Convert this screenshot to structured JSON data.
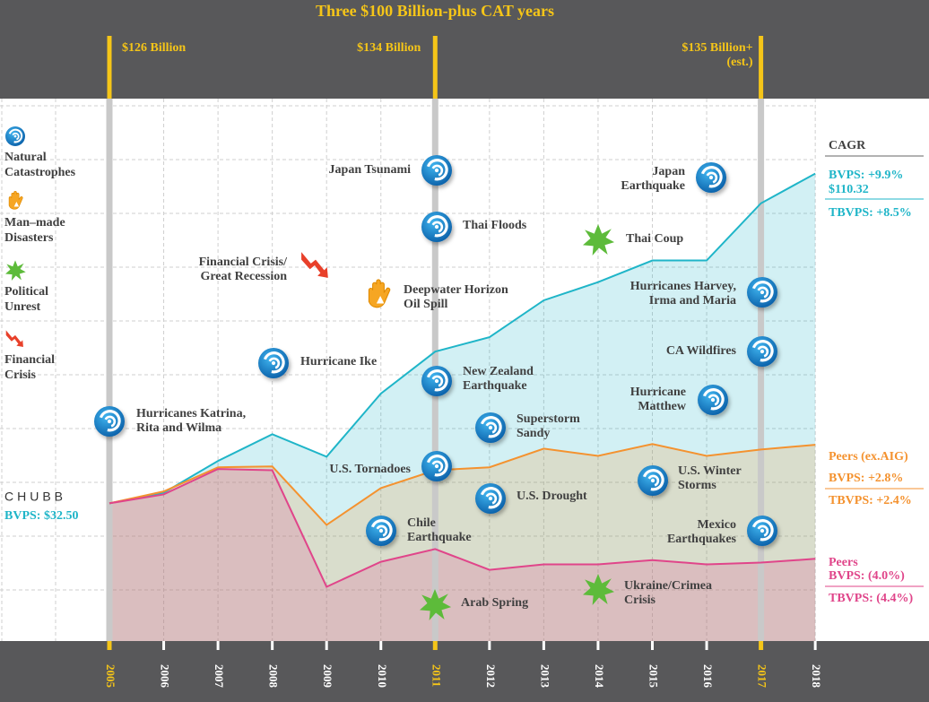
{
  "chart_data": {
    "type": "line",
    "title": "Three $100 Billion-plus CAT years",
    "categories": [
      "2005",
      "2006",
      "2007",
      "2008",
      "2009",
      "2010",
      "2011",
      "2012",
      "2013",
      "2014",
      "2015",
      "2016",
      "2017",
      "2018"
    ],
    "ylim": [
      0,
      128
    ],
    "grid": true,
    "series": [
      {
        "name": "CHUBB",
        "color": "#1fb5c8",
        "values": [
          32.5,
          35.0,
          42.5,
          48.8,
          43.5,
          58.4,
          68.3,
          71.7,
          80.4,
          84.7,
          89.8,
          89.8,
          103.3,
          110.32
        ],
        "value_labels": [
          "BVPS: $32.50",
          null,
          null,
          null,
          null,
          null,
          null,
          null,
          null,
          null,
          null,
          null,
          null,
          "$110.32"
        ],
        "cagr": [
          "BVPS: +9.9%",
          "TBVPS: +8.5%"
        ]
      },
      {
        "name": "Peers (ex.AIG)",
        "color": "#f4922f",
        "values": [
          32.5,
          35.3,
          41.0,
          41.2,
          27.4,
          36.1,
          40.3,
          41.0,
          45.4,
          43.7,
          46.5,
          43.7,
          45.2,
          46.3
        ],
        "cagr": [
          "BVPS: +2.8%",
          "TBVPS: +2.4%"
        ]
      },
      {
        "name": "Peers",
        "color": "#e0458a",
        "values": [
          32.5,
          34.6,
          40.6,
          40.3,
          12.8,
          18.7,
          21.7,
          16.8,
          18.1,
          18.1,
          19.1,
          18.1,
          18.5,
          19.4
        ],
        "cagr": [
          "BVPS: (4.0%)",
          "TBVPS: (4.4%)"
        ]
      }
    ],
    "cagr_title": "CAGR",
    "cat_losses": [
      {
        "category": "2005",
        "label": [
          "$126 Billion"
        ]
      },
      {
        "category": "2011",
        "label": [
          "$134 Billion"
        ]
      },
      {
        "category": "2017",
        "label": [
          "$135 Billion+",
          "(est.)"
        ]
      }
    ],
    "legend": [
      {
        "icon": "natural",
        "label": [
          "Natural",
          "Catastrophes"
        ]
      },
      {
        "icon": "manmade",
        "label": [
          "Man–made",
          "Disasters"
        ]
      },
      {
        "icon": "political",
        "label": [
          "Political",
          "Unrest"
        ]
      },
      {
        "icon": "financial",
        "label": [
          "Financial",
          "Crisis"
        ]
      }
    ],
    "events": [
      {
        "icon": "natural",
        "label": [
          "Hurricanes Katrina,",
          "Rita and Wilma"
        ]
      },
      {
        "icon": "natural",
        "label": [
          "Hurricane Ike"
        ]
      },
      {
        "icon": "financial",
        "label": [
          "Financial Crisis/",
          "Great Recession"
        ]
      },
      {
        "icon": "manmade",
        "label": [
          "Deepwater Horizon",
          "Oil Spill"
        ]
      },
      {
        "icon": "natural",
        "label": [
          "Japan Tsunami"
        ]
      },
      {
        "icon": "natural",
        "label": [
          "Thai Floods"
        ]
      },
      {
        "icon": "natural",
        "label": [
          "New Zealand",
          "Earthquake"
        ]
      },
      {
        "icon": "natural",
        "label": [
          "U.S. Tornadoes"
        ]
      },
      {
        "icon": "natural",
        "label": [
          "Chile",
          "Earthquake"
        ]
      },
      {
        "icon": "political",
        "label": [
          "Arab Spring"
        ]
      },
      {
        "icon": "natural",
        "label": [
          "Superstorm",
          "Sandy"
        ]
      },
      {
        "icon": "natural",
        "label": [
          "U.S. Drought"
        ]
      },
      {
        "icon": "political",
        "label": [
          "Thai Coup"
        ]
      },
      {
        "icon": "political",
        "label": [
          "Ukraine/Crimea",
          "Crisis"
        ]
      },
      {
        "icon": "natural",
        "label": [
          "Japan",
          "Earthquake"
        ]
      },
      {
        "icon": "natural",
        "label": [
          "Hurricanes Harvey,",
          "Irma and Maria"
        ]
      },
      {
        "icon": "natural",
        "label": [
          "CA Wildfires"
        ]
      },
      {
        "icon": "natural",
        "label": [
          "Hurricane",
          "Matthew"
        ]
      },
      {
        "icon": "natural",
        "label": [
          "U.S. Winter",
          "Storms"
        ]
      },
      {
        "icon": "natural",
        "label": [
          "Mexico",
          "Earthquakes"
        ]
      }
    ]
  }
}
